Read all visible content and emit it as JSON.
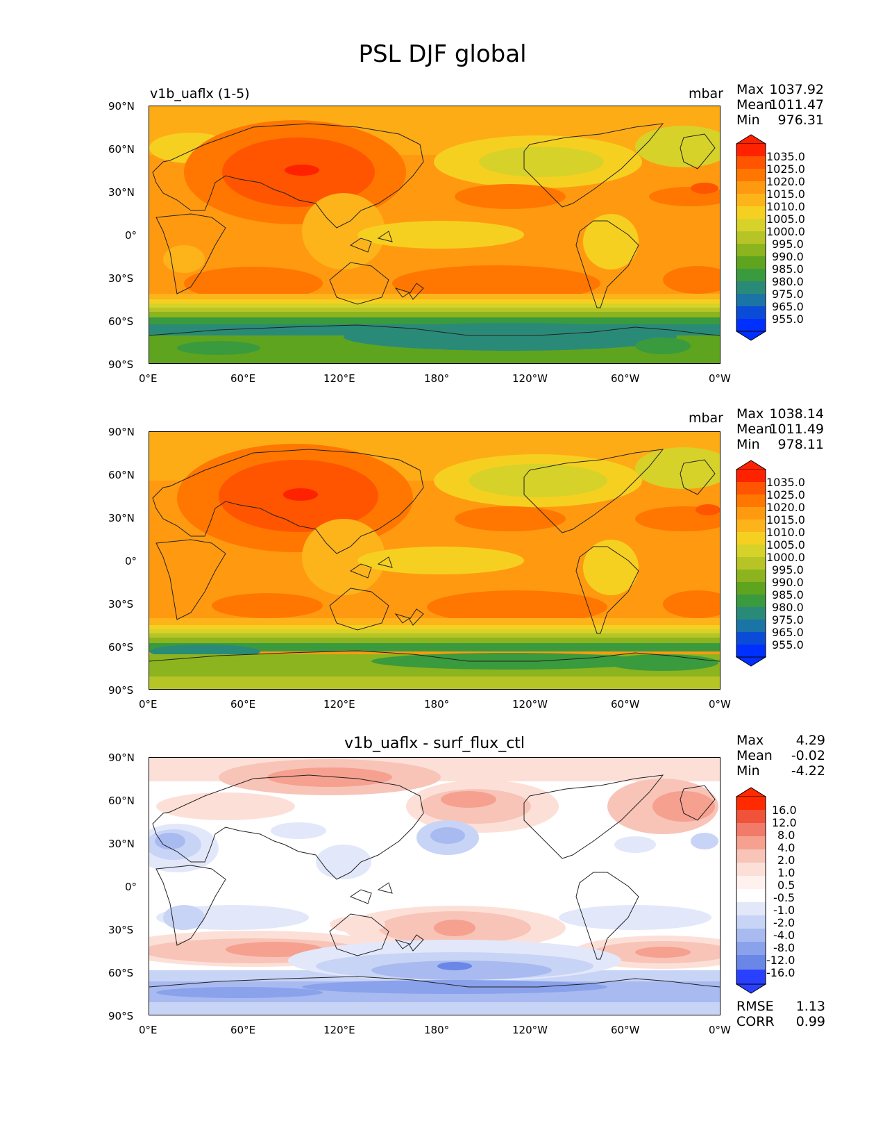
{
  "figure_title": "PSL DJF global",
  "chart_data": [
    {
      "type": "heatmap",
      "title": "v1b_uaflx (1-5)",
      "units": "mbar",
      "stats": {
        "max_label": "Max",
        "max": "1037.92",
        "mean_label": "Mean",
        "mean": "1011.47",
        "min_label": "Min",
        "min": "976.31"
      },
      "x_ticks": [
        "0°E",
        "60°E",
        "120°E",
        "180°",
        "120°W",
        "60°W",
        "0°W"
      ],
      "y_ticks": [
        "90°N",
        "60°N",
        "30°N",
        "0°",
        "30°S",
        "60°S",
        "90°S"
      ],
      "xlim": [
        0,
        360
      ],
      "ylim": [
        -90,
        90
      ],
      "colorbar_levels": [
        "1035.0",
        "1025.0",
        "1020.0",
        "1015.0",
        "1010.0",
        "1005.0",
        "1000.0",
        "995.0",
        "990.0",
        "985.0",
        "980.0",
        "975.0",
        "965.0",
        "955.0"
      ]
    },
    {
      "type": "heatmap",
      "title": "",
      "units": "mbar",
      "stats": {
        "max_label": "Max",
        "max": "1038.14",
        "mean_label": "Mean",
        "mean": "1011.49",
        "min_label": "Min",
        "min": "978.11"
      },
      "x_ticks": [
        "0°E",
        "60°E",
        "120°E",
        "180°",
        "120°W",
        "60°W",
        "0°W"
      ],
      "y_ticks": [
        "90°N",
        "60°N",
        "30°N",
        "0°",
        "30°S",
        "60°S",
        "90°S"
      ],
      "xlim": [
        0,
        360
      ],
      "ylim": [
        -90,
        90
      ],
      "colorbar_levels": [
        "1035.0",
        "1025.0",
        "1020.0",
        "1015.0",
        "1010.0",
        "1005.0",
        "1000.0",
        "995.0",
        "990.0",
        "985.0",
        "980.0",
        "975.0",
        "965.0",
        "955.0"
      ]
    },
    {
      "type": "heatmap",
      "title": "v1b_uaflx - surf_flux_ctl",
      "units": "",
      "stats": {
        "max_label": "Max",
        "max": "4.29",
        "mean_label": "Mean",
        "mean": "-0.02",
        "min_label": "Min",
        "min": "-4.22"
      },
      "extra_stats": {
        "rmse_label": "RMSE",
        "rmse": "1.13",
        "corr_label": "CORR",
        "corr": "0.99"
      },
      "x_ticks": [
        "0°E",
        "60°E",
        "120°E",
        "180°",
        "120°W",
        "60°W",
        "0°W"
      ],
      "y_ticks": [
        "90°N",
        "60°N",
        "30°N",
        "0°",
        "30°S",
        "60°S",
        "90°S"
      ],
      "xlim": [
        0,
        360
      ],
      "ylim": [
        -90,
        90
      ],
      "colorbar_levels": [
        "16.0",
        "12.0",
        "8.0",
        "4.0",
        "2.0",
        "1.0",
        "0.5",
        "-0.5",
        "-1.0",
        "-2.0",
        "-4.0",
        "-8.0",
        "-12.0",
        "-16.0"
      ]
    }
  ],
  "colors": {
    "psl": [
      "#ff2200",
      "#ff5500",
      "#ff7700",
      "#ff9a10",
      "#fcb41a",
      "#f6d020",
      "#d6d22a",
      "#b6c426",
      "#8cb41e",
      "#5ea41e",
      "#3a9a3e",
      "#2a8a78",
      "#1a74a6",
      "#0a4cd8",
      "#0030ff"
    ],
    "diff": [
      "#ff2a00",
      "#f0523a",
      "#f27a68",
      "#f6a090",
      "#f8c4b8",
      "#fce0d8",
      "#ffffff",
      "#e2e8fa",
      "#c8d4f6",
      "#a8baf0",
      "#8aa2ec",
      "#6a86e6",
      "#4c66ee",
      "#2a40ff"
    ],
    "coast": "#222222"
  }
}
